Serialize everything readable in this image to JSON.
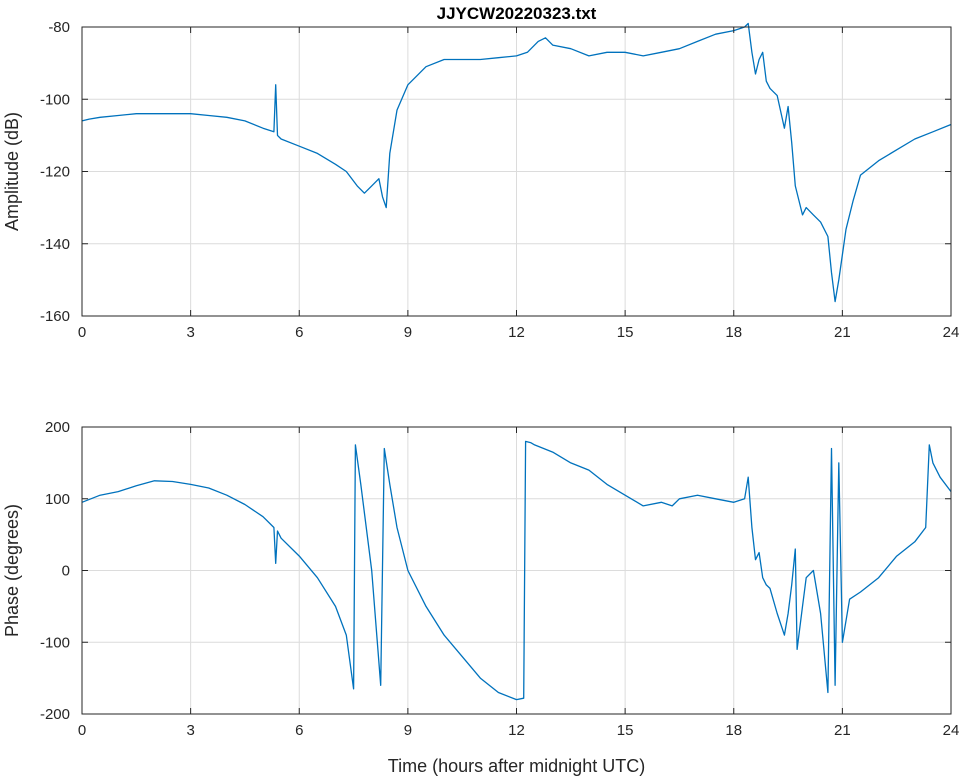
{
  "chart_data": [
    {
      "type": "line",
      "title": "JJYCW20220323.txt",
      "xlabel": "",
      "ylabel": "Amplitude (dB)",
      "xlim": [
        0,
        24
      ],
      "ylim": [
        -160,
        -80
      ],
      "xticks": [
        0,
        3,
        6,
        9,
        12,
        15,
        18,
        21,
        24
      ],
      "yticks": [
        -160,
        -140,
        -120,
        -100,
        -80
      ],
      "xtick_labels": [
        "0",
        "3",
        "6",
        "9",
        "12",
        "15",
        "18",
        "21",
        "24"
      ],
      "ytick_labels": [
        "-160",
        "-140",
        "-120",
        "-100",
        "-80"
      ],
      "grid": true,
      "color": "#0072BD",
      "series": [
        {
          "x": [
            0,
            0.2,
            0.5,
            1.0,
            1.5,
            2.0,
            2.5,
            3.0,
            3.5,
            4.0,
            4.5,
            5.0,
            5.3,
            5.35,
            5.4,
            5.5,
            6.0,
            6.5,
            7.0,
            7.3,
            7.6,
            7.8,
            8.0,
            8.2,
            8.3,
            8.4,
            8.5,
            8.7,
            9.0,
            9.5,
            10.0,
            10.5,
            11.0,
            11.5,
            12.0,
            12.3,
            12.6,
            12.8,
            13.0,
            13.5,
            14.0,
            14.5,
            15.0,
            15.5,
            16.0,
            16.5,
            17.0,
            17.5,
            18.0,
            18.3,
            18.4,
            18.5,
            18.6,
            18.7,
            18.8,
            18.9,
            19.0,
            19.2,
            19.4,
            19.5,
            19.6,
            19.7,
            19.8,
            19.9,
            20.0,
            20.2,
            20.4,
            20.6,
            20.7,
            20.8,
            20.9,
            21.0,
            21.1,
            21.3,
            21.5,
            22.0,
            22.5,
            23.0,
            23.5,
            24.0
          ],
          "y": [
            -106,
            -105.5,
            -105,
            -104.5,
            -104,
            -104,
            -104,
            -104,
            -104.5,
            -105,
            -106,
            -108,
            -109,
            -96,
            -110,
            -111,
            -113,
            -115,
            -118,
            -120,
            -124,
            -126,
            -124,
            -122,
            -127,
            -130,
            -115,
            -103,
            -96,
            -91,
            -89,
            -89,
            -89,
            -88.5,
            -88,
            -87,
            -84,
            -83,
            -85,
            -86,
            -88,
            -87,
            -87,
            -88,
            -87,
            -86,
            -84,
            -82,
            -81,
            -80,
            -79,
            -87,
            -93,
            -89,
            -87,
            -95,
            -97,
            -99,
            -108,
            -102,
            -112,
            -124,
            -128,
            -132,
            -130,
            -132,
            -134,
            -138,
            -148,
            -156,
            -150,
            -143,
            -136,
            -128,
            -121,
            -117,
            -114,
            -111,
            -109,
            -107
          ]
        }
      ]
    },
    {
      "type": "line",
      "title": "",
      "xlabel": "Time (hours after midnight UTC)",
      "ylabel": "Phase (degrees)",
      "xlim": [
        0,
        24
      ],
      "ylim": [
        -200,
        200
      ],
      "xticks": [
        0,
        3,
        6,
        9,
        12,
        15,
        18,
        21,
        24
      ],
      "yticks": [
        -200,
        -100,
        0,
        100,
        200
      ],
      "xtick_labels": [
        "0",
        "3",
        "6",
        "9",
        "12",
        "15",
        "18",
        "21",
        "24"
      ],
      "ytick_labels": [
        "-200",
        "-100",
        "0",
        "100",
        "200"
      ],
      "grid": true,
      "color": "#0072BD",
      "series": [
        {
          "x": [
            0,
            0.5,
            1.0,
            1.5,
            2.0,
            2.5,
            3.0,
            3.5,
            4.0,
            4.5,
            5.0,
            5.3,
            5.35,
            5.4,
            5.5,
            6.0,
            6.5,
            7.0,
            7.3,
            7.5,
            7.55,
            7.7,
            8.0,
            8.25,
            8.35,
            8.5,
            8.7,
            9.0,
            9.5,
            10.0,
            10.5,
            11.0,
            11.5,
            12.0,
            12.2,
            12.25,
            12.4,
            12.5,
            13.0,
            13.5,
            14.0,
            14.5,
            15.0,
            15.5,
            16.0,
            16.3,
            16.5,
            17.0,
            17.5,
            18.0,
            18.3,
            18.4,
            18.5,
            18.6,
            18.7,
            18.8,
            18.9,
            19.0,
            19.2,
            19.4,
            19.5,
            19.6,
            19.7,
            19.75,
            19.8,
            19.9,
            20.0,
            20.2,
            20.4,
            20.6,
            20.7,
            20.8,
            20.9,
            21.0,
            21.2,
            21.5,
            22.0,
            22.5,
            23.0,
            23.3,
            23.4,
            23.5,
            23.7,
            24.0
          ],
          "y": [
            95,
            105,
            110,
            118,
            125,
            124,
            120,
            115,
            105,
            92,
            75,
            60,
            10,
            55,
            45,
            20,
            -10,
            -50,
            -90,
            -165,
            175,
            120,
            0,
            -160,
            170,
            120,
            60,
            0,
            -50,
            -90,
            -120,
            -150,
            -170,
            -180,
            -178,
            180,
            178,
            175,
            165,
            150,
            140,
            120,
            105,
            90,
            95,
            90,
            100,
            105,
            100,
            95,
            100,
            130,
            60,
            15,
            25,
            -10,
            -20,
            -25,
            -60,
            -90,
            -60,
            -20,
            30,
            -110,
            -90,
            -50,
            -10,
            0,
            -60,
            -170,
            170,
            -160,
            150,
            -100,
            -40,
            -30,
            -10,
            20,
            40,
            60,
            175,
            150,
            130,
            110
          ]
        }
      ]
    }
  ]
}
